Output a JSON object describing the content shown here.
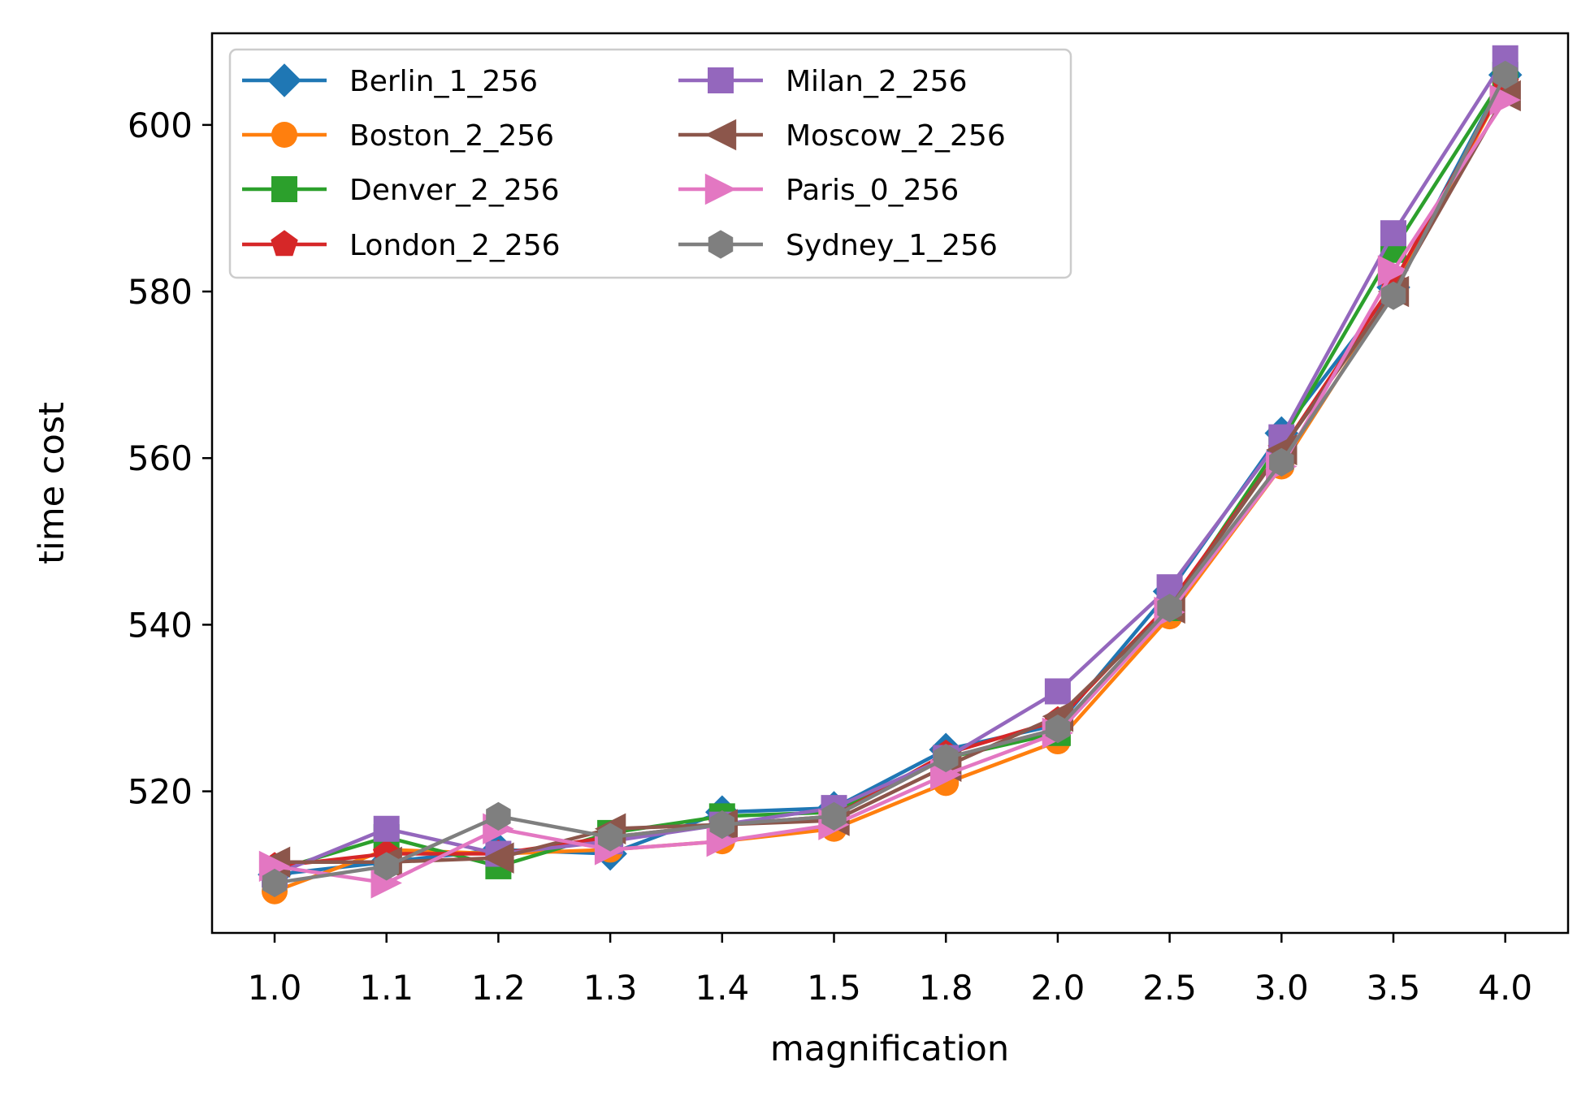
{
  "chart_data": {
    "type": "line",
    "title": "",
    "xlabel": "magnification",
    "ylabel": "time cost",
    "categories": [
      "1.0",
      "1.1",
      "1.2",
      "1.3",
      "1.4",
      "1.5",
      "1.8",
      "2.0",
      "2.5",
      "3.0",
      "3.5",
      "4.0"
    ],
    "ylim": [
      503,
      611
    ],
    "yticks": [
      520,
      540,
      560,
      580,
      600
    ],
    "grid": false,
    "legend": {
      "placement": "top-left",
      "columns": 2
    },
    "series": [
      {
        "name": "Berlin_1_256",
        "color": "#1f77b4",
        "marker": "diamond",
        "values": [
          510,
          511.5,
          513,
          512.5,
          517.5,
          518,
          525,
          528,
          544,
          563,
          580.5,
          606
        ]
      },
      {
        "name": "Boston_2_256",
        "color": "#ff7f0e",
        "marker": "circle",
        "values": [
          508,
          513,
          512.5,
          513,
          514,
          515.5,
          521,
          526,
          541,
          559,
          580,
          605
        ]
      },
      {
        "name": "Denver_2_256",
        "color": "#2ca02c",
        "marker": "square",
        "values": [
          510.5,
          514.5,
          511,
          515,
          517,
          517.5,
          524,
          527,
          542,
          562,
          585,
          606
        ]
      },
      {
        "name": "London_2_256",
        "color": "#d62728",
        "marker": "pentagon",
        "values": [
          511,
          512.5,
          512.5,
          514.5,
          516,
          517,
          524.5,
          528.5,
          542.5,
          561,
          581,
          605
        ]
      },
      {
        "name": "Milan_2_256",
        "color": "#9467bd",
        "marker": "square",
        "values": [
          510,
          515.5,
          512.5,
          514,
          516,
          518,
          524,
          532,
          544.5,
          562.5,
          587,
          608
        ]
      },
      {
        "name": "Moscow_2_256",
        "color": "#8c564b",
        "marker": "triangle-left",
        "values": [
          511.5,
          511.5,
          512,
          515.5,
          516,
          516.5,
          523,
          529,
          542,
          561,
          580,
          603.5
        ]
      },
      {
        "name": "Paris_0_256",
        "color": "#e377c2",
        "marker": "triangle-right",
        "values": [
          511,
          509,
          515.5,
          513,
          514,
          516,
          522,
          527,
          541.5,
          559,
          582.5,
          603
        ]
      },
      {
        "name": "Sydney_1_256",
        "color": "#7f7f7f",
        "marker": "hexagon",
        "values": [
          509,
          511,
          517,
          514.5,
          516,
          517,
          524,
          527.5,
          542,
          559.5,
          579.5,
          606
        ]
      }
    ]
  }
}
